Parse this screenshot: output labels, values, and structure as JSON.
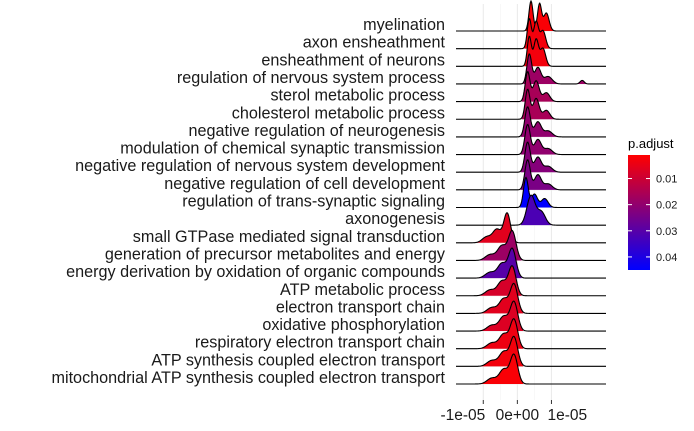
{
  "chart_data": {
    "type": "ridgeline",
    "x_ticks": [
      {
        "value": -1e-05,
        "label": "-1e-05"
      },
      {
        "value": 0,
        "label": "0e+00"
      },
      {
        "value": 1e-05,
        "label": "1e-05"
      }
    ],
    "xlim": [
      -1.8e-05,
      2.6e-05
    ],
    "grid": true,
    "legend": {
      "title": "p.adjust",
      "position": "right",
      "min": 0.001,
      "max": 0.045,
      "ticks": [
        0.01,
        0.02,
        0.03,
        0.04
      ],
      "tick_labels": [
        "0.01",
        "0.02",
        "0.03",
        "0.04"
      ],
      "color_low": "#ff0000",
      "color_high": "#0000ff"
    },
    "rows": [
      {
        "label": "myelination",
        "p_adjust": 0.002,
        "peaks": [
          [
            4e-06,
            1.0,
            6e-07
          ],
          [
            6.5e-06,
            0.9,
            6e-07
          ],
          [
            8.5e-06,
            0.6,
            8e-07
          ]
        ],
        "tail": 9e-06
      },
      {
        "label": "axon ensheathment",
        "p_adjust": 0.003,
        "peaks": [
          [
            3.5e-06,
            1.0,
            6e-07
          ],
          [
            5.5e-06,
            0.9,
            7e-07
          ],
          [
            7.5e-06,
            0.6,
            8e-07
          ]
        ],
        "tail": 9e-06
      },
      {
        "label": "ensheathment of neurons",
        "p_adjust": 0.003,
        "peaks": [
          [
            3.5e-06,
            1.0,
            6e-07
          ],
          [
            5.5e-06,
            0.9,
            7e-07
          ],
          [
            7.5e-06,
            0.6,
            8e-07
          ]
        ],
        "tail": 9e-06
      },
      {
        "label": "regulation of nervous system process",
        "p_adjust": 0.018,
        "peaks": [
          [
            3.5e-06,
            1.0,
            7e-07
          ],
          [
            6e-06,
            0.55,
            9e-07
          ],
          [
            9e-06,
            0.25,
            1.2e-06
          ],
          [
            1.9e-05,
            0.12,
            6e-07
          ]
        ],
        "tail": 2.1e-05
      },
      {
        "label": "sterol metabolic process",
        "p_adjust": 0.016,
        "peaks": [
          [
            3e-06,
            1.0,
            7e-07
          ],
          [
            5.5e-06,
            0.7,
            9e-07
          ],
          [
            8.5e-06,
            0.3,
            1e-06
          ]
        ],
        "tail": 1e-05
      },
      {
        "label": "cholesterol metabolic process",
        "p_adjust": 0.016,
        "peaks": [
          [
            3e-06,
            1.0,
            7e-07
          ],
          [
            5.5e-06,
            0.7,
            9e-07
          ],
          [
            8.5e-06,
            0.3,
            1e-06
          ]
        ],
        "tail": 1e-05
      },
      {
        "label": "negative regulation of neurogenesis",
        "p_adjust": 0.02,
        "peaks": [
          [
            3e-06,
            1.0,
            8e-07
          ],
          [
            6e-06,
            0.5,
            1e-06
          ],
          [
            9e-06,
            0.2,
            1.2e-06
          ]
        ],
        "tail": 1e-05
      },
      {
        "label": "modulation of chemical synaptic transmission",
        "p_adjust": 0.02,
        "peaks": [
          [
            3e-06,
            1.0,
            8e-07
          ],
          [
            6e-06,
            0.5,
            1e-06
          ],
          [
            9e-06,
            0.2,
            1.2e-06
          ]
        ],
        "tail": 1e-05
      },
      {
        "label": "negative regulation of nervous system development",
        "p_adjust": 0.022,
        "peaks": [
          [
            3e-06,
            1.0,
            8e-07
          ],
          [
            6e-06,
            0.5,
            1e-06
          ],
          [
            9e-06,
            0.2,
            1.2e-06
          ]
        ],
        "tail": 1e-05
      },
      {
        "label": "negative regulation of cell development",
        "p_adjust": 0.024,
        "peaks": [
          [
            3e-06,
            1.0,
            8e-07
          ],
          [
            6e-06,
            0.5,
            1e-06
          ],
          [
            9e-06,
            0.2,
            1.2e-06
          ]
        ],
        "tail": 1e-05
      },
      {
        "label": "regulation of trans-synaptic signaling",
        "p_adjust": 0.045,
        "peaks": [
          [
            2.5e-06,
            1.0,
            7e-07
          ],
          [
            5e-06,
            0.45,
            9e-07
          ],
          [
            8e-06,
            0.3,
            1e-06
          ]
        ],
        "tail": 1e-05
      },
      {
        "label": "axonogenesis",
        "p_adjust": 0.032,
        "peaks": [
          [
            4e-06,
            1.0,
            1.2e-06
          ],
          [
            7e-06,
            0.45,
            1.2e-06
          ]
        ],
        "tail": 1e-05
      },
      {
        "label": "small GTPase mediated signal transduction",
        "p_adjust": 0.006,
        "peaks": [
          [
            -3e-06,
            1.0,
            1e-06
          ],
          [
            -6e-06,
            0.45,
            1.2e-06
          ],
          [
            -9e-06,
            0.2,
            1.3e-06
          ]
        ],
        "tail": -1e-05
      },
      {
        "label": "generation of precursor metabolites and energy",
        "p_adjust": 0.018,
        "peaks": [
          [
            -1.5e-06,
            1.0,
            1.1e-06
          ],
          [
            -4.5e-06,
            0.5,
            1.3e-06
          ],
          [
            -8e-06,
            0.2,
            1.4e-06
          ]
        ],
        "tail": -1e-05
      },
      {
        "label": "energy derivation by oxidation of organic compounds",
        "p_adjust": 0.03,
        "peaks": [
          [
            -1.5e-06,
            1.0,
            1.1e-06
          ],
          [
            -4.5e-06,
            0.5,
            1.3e-06
          ],
          [
            -8e-06,
            0.2,
            1.4e-06
          ]
        ],
        "tail": -1e-05
      },
      {
        "label": "ATP metabolic process",
        "p_adjust": 0.008,
        "peaks": [
          [
            -1.5e-06,
            1.0,
            1.1e-06
          ],
          [
            -4.5e-06,
            0.5,
            1.3e-06
          ],
          [
            -8e-06,
            0.2,
            1.4e-06
          ]
        ],
        "tail": -1e-05
      },
      {
        "label": "electron transport chain",
        "p_adjust": 0.006,
        "peaks": [
          [
            -1e-06,
            1.0,
            1.1e-06
          ],
          [
            -4e-06,
            0.5,
            1.3e-06
          ],
          [
            -7.5e-06,
            0.2,
            1.4e-06
          ]
        ],
        "tail": -1e-05
      },
      {
        "label": "oxidative phosphorylation",
        "p_adjust": 0.007,
        "peaks": [
          [
            -1e-06,
            1.0,
            1.1e-06
          ],
          [
            -4e-06,
            0.5,
            1.3e-06
          ],
          [
            -7.5e-06,
            0.2,
            1.4e-06
          ]
        ],
        "tail": -1e-05
      },
      {
        "label": "respiratory electron transport chain",
        "p_adjust": 0.004,
        "peaks": [
          [
            -1e-06,
            1.0,
            1.1e-06
          ],
          [
            -4e-06,
            0.5,
            1.3e-06
          ],
          [
            -7.5e-06,
            0.2,
            1.4e-06
          ]
        ],
        "tail": -1e-05
      },
      {
        "label": "ATP synthesis coupled electron transport",
        "p_adjust": 0.003,
        "peaks": [
          [
            -1e-06,
            1.0,
            1.1e-06
          ],
          [
            -4e-06,
            0.5,
            1.3e-06
          ],
          [
            -7.5e-06,
            0.2,
            1.4e-06
          ]
        ],
        "tail": -1e-05
      },
      {
        "label": "mitochondrial ATP synthesis coupled electron transport",
        "p_adjust": 0.002,
        "peaks": [
          [
            -1e-06,
            1.0,
            1.1e-06
          ],
          [
            -4e-06,
            0.5,
            1.3e-06
          ],
          [
            -7.5e-06,
            0.2,
            1.4e-06
          ]
        ],
        "tail": -1e-05
      }
    ]
  }
}
